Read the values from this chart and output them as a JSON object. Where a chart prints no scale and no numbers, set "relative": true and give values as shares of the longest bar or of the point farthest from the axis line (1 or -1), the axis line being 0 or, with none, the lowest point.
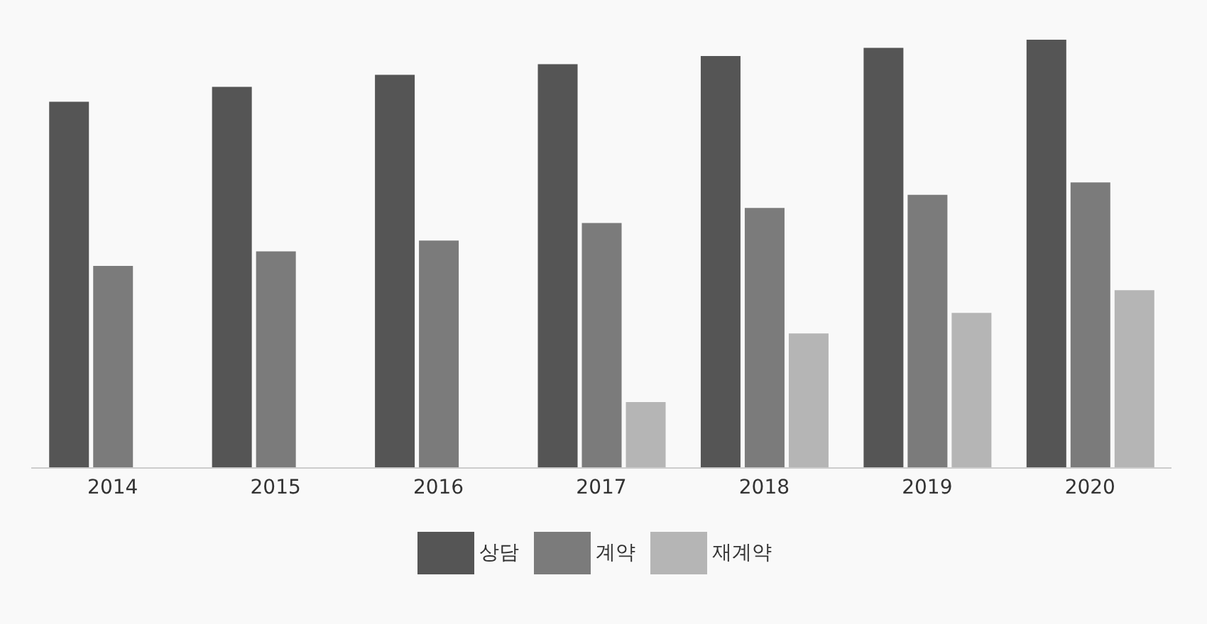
{
  "chart_data": {
    "type": "bar",
    "relative": true,
    "legend": "bottom",
    "categories": [
      "2014",
      "2015",
      "2016",
      "2017",
      "2018",
      "2019",
      "2020"
    ],
    "series": [
      {
        "name": "상담",
        "color": "#555555",
        "values": [
          0.855,
          0.89,
          0.918,
          0.943,
          0.962,
          0.981,
          1
        ]
      },
      {
        "name": "계약",
        "color": "#7b7b7b",
        "values": [
          0.472,
          0.506,
          0.531,
          0.572,
          0.607,
          0.638,
          0.667
        ]
      },
      {
        "name": "재계약",
        "color": "#b5b5b5",
        "values": [
          null,
          null,
          null,
          0.154,
          0.314,
          0.362,
          0.415
        ]
      }
    ]
  }
}
